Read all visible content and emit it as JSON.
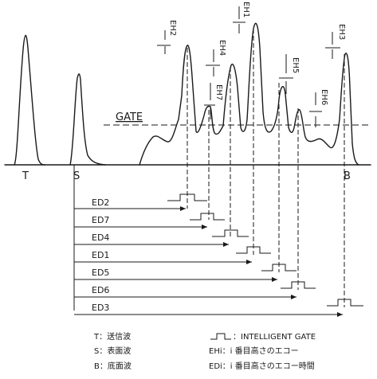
{
  "labels": {
    "T": "T",
    "S": "S",
    "B": "B",
    "gate": "GATE"
  },
  "echo_heights": [
    "EH2",
    "EH4",
    "EH7",
    "EH1",
    "EH5",
    "EH6",
    "EH3"
  ],
  "echo_times": [
    "ED2",
    "ED7",
    "ED4",
    "ED1",
    "ED5",
    "ED6",
    "ED3"
  ],
  "legend": {
    "T": "T：送信波",
    "S": "S：表面波",
    "B": "B：底面波",
    "gate": "：INTELLIGENT GATE",
    "EH": "EHi：i 番目高さのエコー",
    "ED": "EDi：i 番目高さのエコー時間"
  }
}
